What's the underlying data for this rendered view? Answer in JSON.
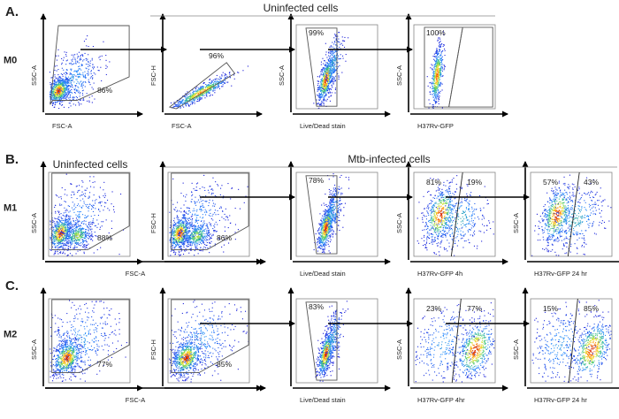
{
  "colors": {
    "axis": "#000000",
    "gate": "#555555",
    "density_low": "#1a1ad8",
    "density_high": "#d11a00"
  },
  "panels": [
    {
      "id": "A",
      "label": "A.",
      "row_label": "M0",
      "groups": [
        {
          "label": "Uninfected cells"
        }
      ],
      "plots": [
        {
          "kind": "scatter",
          "xlabel": "FSC-A",
          "ylabel": "SSC-A",
          "percents": [
            "86%"
          ]
        },
        {
          "kind": "singlet",
          "xlabel": "FSC-A",
          "ylabel": "FSC-H",
          "percents": [
            "96%"
          ]
        },
        {
          "kind": "live",
          "xlabel": "Live/Dead stain",
          "ylabel": "SSC-A",
          "percents": [
            "99%"
          ]
        },
        {
          "kind": "gfp-left",
          "xlabel": "H37Rv-GFP",
          "ylabel": "SSC-A",
          "percents": [
            "100%"
          ]
        }
      ]
    },
    {
      "id": "B",
      "label": "B.",
      "row_label": "M1",
      "groups": [
        {
          "label": "Uninfected cells"
        },
        {
          "label": "Mtb-infected cells"
        }
      ],
      "plots": [
        {
          "kind": "scatter-m1",
          "xlabel": "FSC-A",
          "ylabel": "SSC-A",
          "percents": [
            "88%"
          ]
        },
        {
          "kind": "scatter-m1",
          "xlabel": "",
          "ylabel": "FSC-H",
          "percents": [
            "86%"
          ]
        },
        {
          "kind": "live",
          "xlabel": "Live/Dead stain",
          "ylabel": "",
          "percents": [
            "78%"
          ]
        },
        {
          "kind": "gfp-split",
          "xlabel": "H37Rv-GFP 4h",
          "ylabel": "SSC-A",
          "percents": [
            "81%",
            "19%"
          ]
        },
        {
          "kind": "gfp-split",
          "xlabel": "H37Rv-GFP 24 hr",
          "ylabel": "SSC-A",
          "percents": [
            "57%",
            "43%"
          ]
        }
      ]
    },
    {
      "id": "C",
      "label": "C.",
      "row_label": "M2",
      "groups": [],
      "plots": [
        {
          "kind": "scatter-m2",
          "xlabel": "FSC-A",
          "ylabel": "SSC-A",
          "percents": [
            "77%"
          ]
        },
        {
          "kind": "scatter-m2",
          "xlabel": "",
          "ylabel": "FSC-H",
          "percents": [
            "85%"
          ]
        },
        {
          "kind": "live",
          "xlabel": "Live/Dead stain",
          "ylabel": "",
          "percents": [
            "83%"
          ]
        },
        {
          "kind": "gfp-right",
          "xlabel": "H37Rv-GFP 4hr",
          "ylabel": "SSC-A",
          "percents": [
            "23%",
            "77%"
          ]
        },
        {
          "kind": "gfp-right",
          "xlabel": "H37Rv-GFP 24 hr",
          "ylabel": "SSC-A",
          "percents": [
            "15%",
            "85%"
          ]
        }
      ]
    }
  ]
}
